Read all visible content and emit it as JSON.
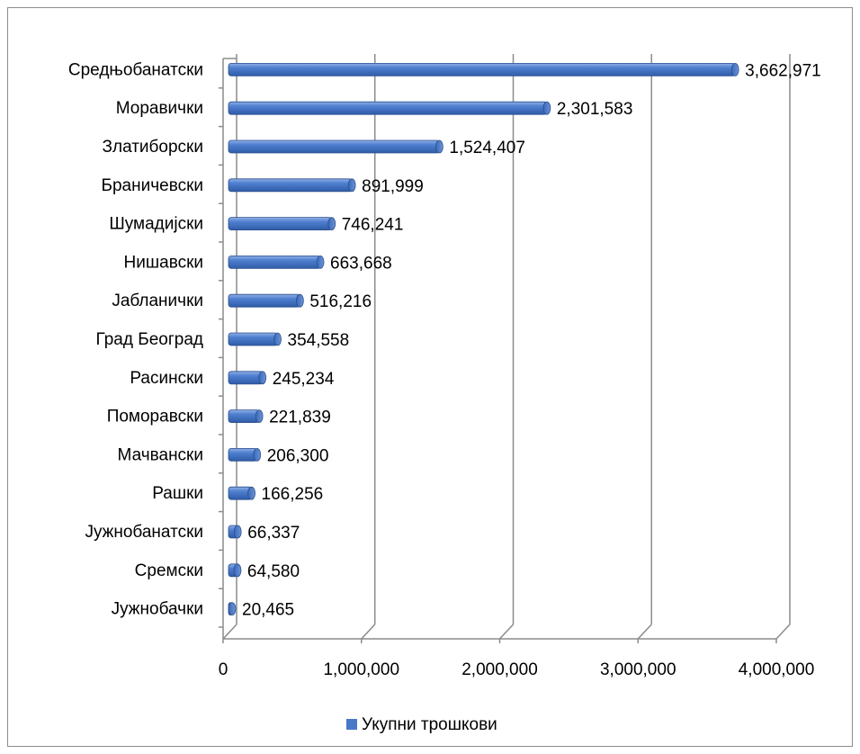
{
  "chart_data": {
    "type": "bar",
    "orientation": "horizontal",
    "three_d": true,
    "categories": [
      "Средњобанатски",
      "Моравички",
      "Златиборски",
      "Браничевски",
      "Шумадијски",
      "Нишавски",
      "Јабланички",
      "Град Београд",
      "Расински",
      "Поморавски",
      "Мачвански",
      "Рашки",
      "Јужнобанатски",
      "Сремски",
      "Јужнобачки"
    ],
    "series": [
      {
        "name": "Укупни трошкови",
        "color": "#4a78c8",
        "values": [
          3662971,
          2301583,
          1524407,
          891999,
          746241,
          663668,
          516216,
          354558,
          245234,
          221839,
          206300,
          166256,
          66337,
          64580,
          20465
        ],
        "labels": [
          "3,662,971",
          "2,301,583",
          "1,524,407",
          "891,999",
          "746,241",
          "663,668",
          "516,216",
          "354,558",
          "245,234",
          "221,839",
          "206,300",
          "166,256",
          "66,337",
          "64,580",
          "20,465"
        ]
      }
    ],
    "xlim": [
      0,
      4000000
    ],
    "x_ticks": [
      0,
      1000000,
      2000000,
      3000000,
      4000000
    ],
    "x_tick_labels": [
      "0",
      "1,000,000",
      "2,000,000",
      "3,000,000",
      "4,000,000"
    ],
    "grid": true,
    "legend_position": "bottom",
    "title": "",
    "xlabel": "",
    "ylabel": ""
  }
}
